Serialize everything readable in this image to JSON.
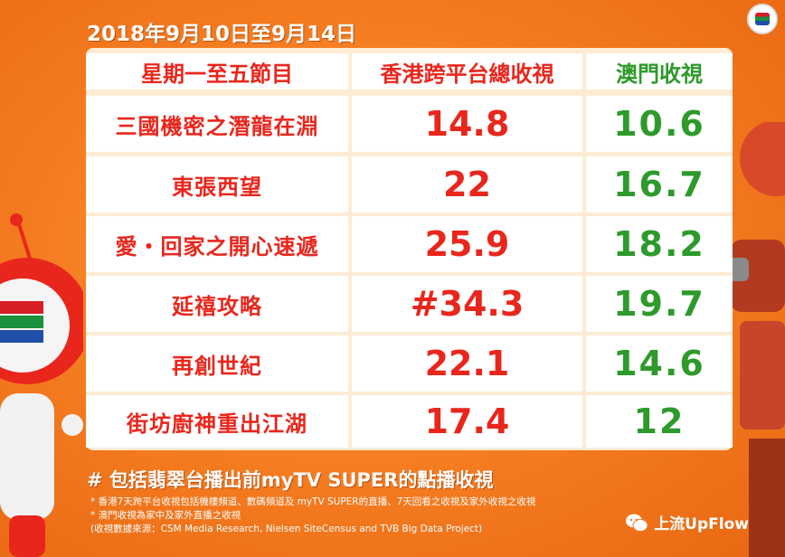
{
  "date_range": "2018年9月10日至9月14日",
  "header": {
    "col1": "星期一至五節目",
    "col2": "香港跨平台總收視",
    "col3": "澳門收視"
  },
  "rows": [
    {
      "program": "三國機密之潛龍在淵",
      "hk": "14.8",
      "macau": "10.6"
    },
    {
      "program": "東張西望",
      "hk": "22",
      "macau": "16.7"
    },
    {
      "program": "愛・回家之開心速遞",
      "hk": "25.9",
      "macau": "18.2"
    },
    {
      "program": "延禧攻略",
      "hk": "#34.3",
      "macau": "19.7"
    },
    {
      "program": "再創世紀",
      "hk": "22.1",
      "macau": "14.6"
    },
    {
      "program": "街坊廚神重出江湖",
      "hk": "17.4",
      "macau": "12"
    }
  ],
  "footnote_main": "# 包括翡翠台播出前myTV SUPER的點播收視",
  "notes": [
    "* 香港7天跨平台收視包括機樓頻道、數碼頻道及 myTV SUPER的直播、7天回看之收視及家外收視之收視",
    "* 澳門收視為家中及家外直播之收視",
    "(收視數據來源：CSM Media Research, Nielsen SiteCensus and TVB Big Data Project)"
  ],
  "watermark": "上流UpFlow",
  "colors": {
    "background": "#f47a1f",
    "red": "#e9261c",
    "green": "#2d9a2b"
  }
}
